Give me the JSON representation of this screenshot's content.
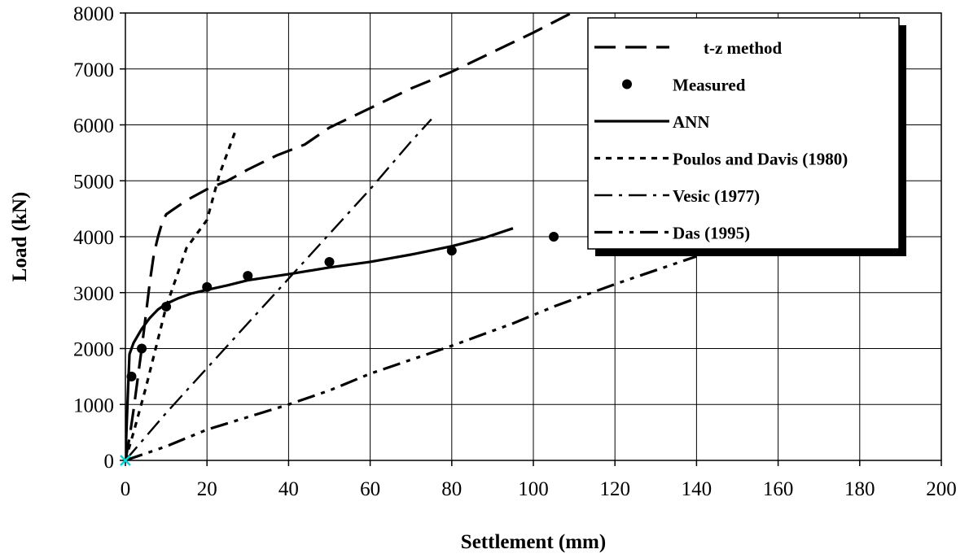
{
  "chart_data": {
    "type": "line",
    "title": "",
    "xlabel": "Settlement (mm)",
    "ylabel": "Load (kN)",
    "xlim": [
      0,
      200
    ],
    "ylim": [
      0,
      8000
    ],
    "x_ticks": [
      0,
      20,
      40,
      60,
      80,
      100,
      120,
      140,
      160,
      180,
      200
    ],
    "y_ticks": [
      0,
      1000,
      2000,
      3000,
      4000,
      5000,
      6000,
      7000,
      8000
    ],
    "grid": true,
    "legend_position": "top-right",
    "series": [
      {
        "name": "t-z method",
        "style": "long-dash",
        "x": [
          0,
          1,
          2,
          3,
          4,
          5,
          6,
          7,
          8,
          9,
          10,
          12,
          15,
          20,
          25,
          30,
          37,
          44,
          50,
          60,
          70,
          80,
          90,
          100,
          112
        ],
        "y": [
          0,
          400,
          900,
          1450,
          2000,
          2600,
          3200,
          3700,
          4000,
          4250,
          4400,
          4500,
          4650,
          4850,
          5000,
          5200,
          5450,
          5650,
          5950,
          6300,
          6650,
          6950,
          7300,
          7650,
          8100
        ]
      },
      {
        "name": "Measured",
        "style": "markers",
        "x": [
          1.5,
          4,
          10,
          20,
          30,
          50,
          80,
          105
        ],
        "y": [
          1500,
          2000,
          2750,
          3100,
          3300,
          3550,
          3750,
          4000
        ]
      },
      {
        "name": "ANN",
        "style": "solid",
        "x": [
          0,
          0.5,
          1,
          2,
          4,
          6,
          8,
          10,
          13,
          16,
          20,
          25,
          30,
          40,
          50,
          60,
          70,
          80,
          88,
          95
        ],
        "y": [
          0,
          1000,
          1900,
          2100,
          2350,
          2550,
          2700,
          2800,
          2900,
          2980,
          3050,
          3130,
          3220,
          3330,
          3450,
          3550,
          3680,
          3830,
          3980,
          4150
        ]
      },
      {
        "name": "Poulos and Davis (1980)",
        "style": "dotted",
        "x": [
          0,
          2,
          5,
          10,
          15,
          20,
          23,
          27
        ],
        "y": [
          0,
          500,
          1300,
          2750,
          3800,
          4300,
          5100,
          5900
        ]
      },
      {
        "name": "Vesic (1977)",
        "style": "dash-dot",
        "x": [
          0,
          10,
          20,
          30,
          40,
          50,
          60,
          70,
          75
        ],
        "y": [
          0,
          850,
          1650,
          2450,
          3250,
          4050,
          4850,
          5700,
          6100
        ]
      },
      {
        "name": "Das (1995)",
        "style": "dash-dot-dot",
        "x": [
          0,
          10,
          20,
          40,
          50,
          60,
          70,
          80,
          95,
          105,
          120,
          140
        ],
        "y": [
          0,
          250,
          550,
          1000,
          1250,
          1550,
          1800,
          2050,
          2450,
          2750,
          3150,
          3650
        ]
      }
    ]
  }
}
